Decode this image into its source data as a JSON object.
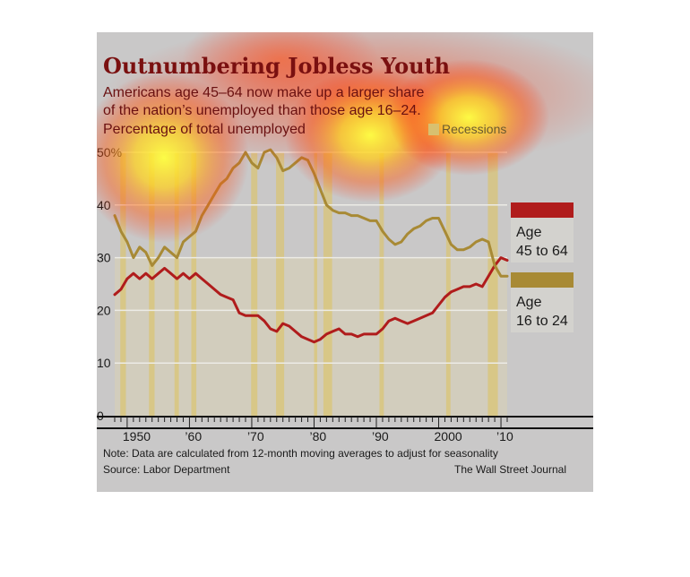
{
  "chart_data": {
    "type": "line",
    "title": "Outnumbering Jobless Youth",
    "subtitle": [
      "Americans age 45–64 now make up a larger share",
      "of the nation’s unemployed than those age 16–24.",
      "Percentage of total unemployed"
    ],
    "ylim": [
      0,
      50
    ],
    "y_ticks": [
      {
        "v": 0,
        "label": "0"
      },
      {
        "v": 10,
        "label": "10"
      },
      {
        "v": 20,
        "label": "20"
      },
      {
        "v": 30,
        "label": "30"
      },
      {
        "v": 40,
        "label": "40"
      },
      {
        "v": 50,
        "label": "50%"
      }
    ],
    "xlim": [
      1948,
      2011
    ],
    "x_ticks": [
      {
        "v": 1950,
        "label": "1950"
      },
      {
        "v": 1960,
        "label": "’60"
      },
      {
        "v": 1970,
        "label": "’70"
      },
      {
        "v": 1980,
        "label": "’80"
      },
      {
        "v": 1990,
        "label": "’90"
      },
      {
        "v": 2000,
        "label": "2000"
      },
      {
        "v": 2010,
        "label": "’10"
      }
    ],
    "recessions_label": "Recessions",
    "recessions": [
      [
        1948.9,
        1949.8
      ],
      [
        1953.5,
        1954.4
      ],
      [
        1957.6,
        1958.3
      ],
      [
        1960.3,
        1961.1
      ],
      [
        1969.9,
        1970.9
      ],
      [
        1973.9,
        1975.2
      ],
      [
        1980.0,
        1980.5
      ],
      [
        1981.5,
        1982.9
      ],
      [
        1990.5,
        1991.2
      ],
      [
        2001.2,
        2001.9
      ],
      [
        2007.9,
        2009.5
      ]
    ],
    "series": [
      {
        "name": "Age 45 to 64",
        "color": "#b01c1c",
        "x": [
          1948,
          1949,
          1950,
          1951,
          1952,
          1953,
          1954,
          1955,
          1956,
          1957,
          1958,
          1959,
          1960,
          1961,
          1962,
          1963,
          1964,
          1965,
          1966,
          1967,
          1968,
          1969,
          1970,
          1971,
          1972,
          1973,
          1974,
          1975,
          1976,
          1977,
          1978,
          1979,
          1980,
          1981,
          1982,
          1983,
          1984,
          1985,
          1986,
          1987,
          1988,
          1989,
          1990,
          1991,
          1992,
          1993,
          1994,
          1995,
          1996,
          1997,
          1998,
          1999,
          2000,
          2001,
          2002,
          2003,
          2004,
          2005,
          2006,
          2007,
          2008,
          2009,
          2010,
          2011
        ],
        "values": [
          23,
          24,
          26,
          27,
          26,
          27,
          26,
          27,
          28,
          27,
          26,
          27,
          26,
          27,
          26,
          25,
          24,
          23,
          22.5,
          22,
          19.5,
          19,
          19,
          19,
          18,
          16.5,
          16,
          17.5,
          17,
          16,
          15,
          14.5,
          14,
          14.5,
          15.5,
          16,
          16.5,
          15.5,
          15.5,
          15,
          15.5,
          15.5,
          15.5,
          16.5,
          18,
          18.5,
          18,
          17.5,
          18,
          18.5,
          19,
          19.5,
          21,
          22.5,
          23.5,
          24,
          24.5,
          24.5,
          25,
          24.5,
          26.5,
          28.5,
          30,
          29.5
        ]
      },
      {
        "name": "Age 16 to 24",
        "color": "#a88a35",
        "x": [
          1948,
          1949,
          1950,
          1951,
          1952,
          1953,
          1954,
          1955,
          1956,
          1957,
          1958,
          1959,
          1960,
          1961,
          1962,
          1963,
          1964,
          1965,
          1966,
          1967,
          1968,
          1969,
          1970,
          1971,
          1972,
          1973,
          1974,
          1975,
          1976,
          1977,
          1978,
          1979,
          1980,
          1981,
          1982,
          1983,
          1984,
          1985,
          1986,
          1987,
          1988,
          1989,
          1990,
          1991,
          1992,
          1993,
          1994,
          1995,
          1996,
          1997,
          1998,
          1999,
          2000,
          2001,
          2002,
          2003,
          2004,
          2005,
          2006,
          2007,
          2008,
          2009,
          2010,
          2011
        ],
        "values": [
          38,
          35,
          33,
          30,
          32,
          31,
          28.5,
          30,
          32,
          31,
          30,
          33,
          34,
          35,
          38,
          40,
          42,
          44,
          45,
          47,
          48,
          50,
          48,
          47,
          50,
          50.5,
          49,
          46.5,
          47,
          48,
          49,
          48.5,
          46,
          43,
          40,
          39,
          38.5,
          38.5,
          38,
          38,
          37.5,
          37,
          37,
          35,
          33.5,
          32.5,
          33,
          34.5,
          35.5,
          36,
          37,
          37.5,
          37.5,
          35,
          32.5,
          31.5,
          31.5,
          32,
          33,
          33.5,
          33,
          28.5,
          26.5,
          26.5
        ]
      }
    ],
    "legend": [
      {
        "line1": "Age",
        "line2": "45 to 64",
        "color": "#b01c1c"
      },
      {
        "line1": "Age",
        "line2": "16 to 24",
        "color": "#a88a35"
      }
    ],
    "note": "Note: Data are calculated from 12-month moving averages to adjust for seasonality",
    "source": "Source: Labor Department",
    "credit": "The Wall Street Journal"
  }
}
